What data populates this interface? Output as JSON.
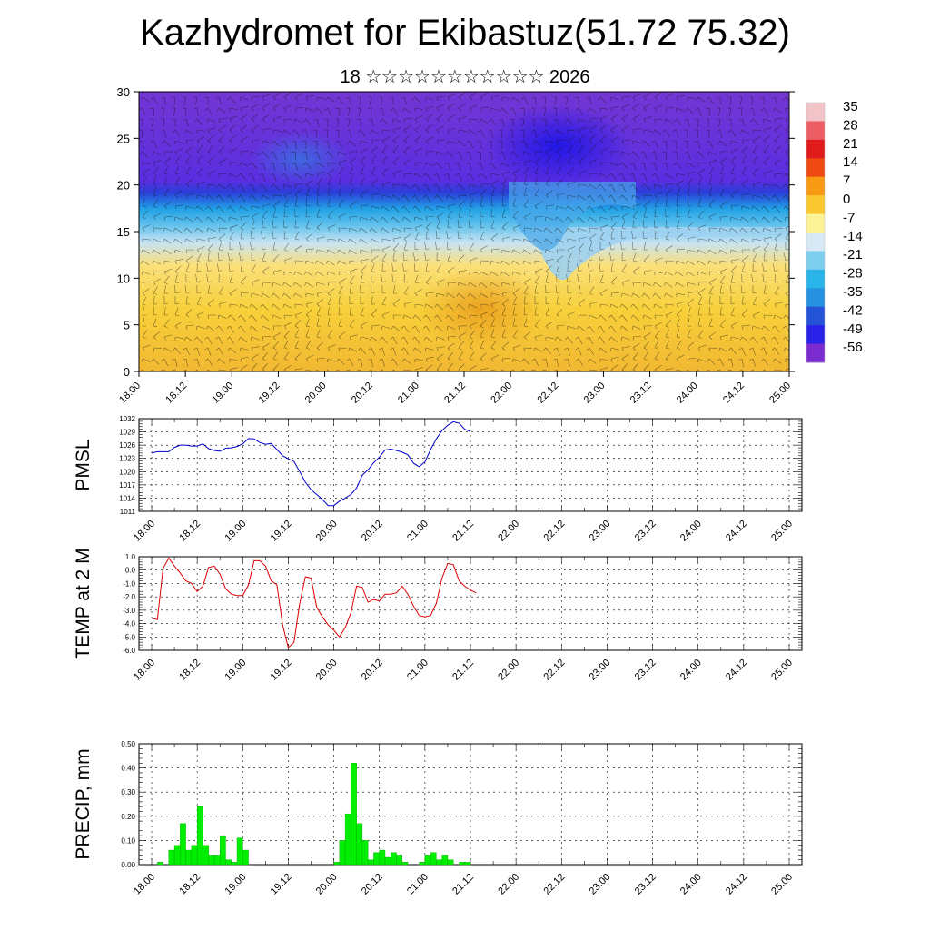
{
  "header": {
    "title": "Kazhydromet for Ekibastuz(51.72 75.32)",
    "subtitle": "18 ☆☆☆☆☆☆☆☆☆☆☆ 2026"
  },
  "colors": {
    "pmsl_line": "#0000cc",
    "temp_line": "#dd0000",
    "precip_bar": "#00ee00",
    "bar_edge": "#00aa00"
  },
  "time_ticks": [
    "18.00",
    "18.12",
    "19.00",
    "19.12",
    "20.00",
    "20.12",
    "21.00",
    "21.12",
    "22.00",
    "22.12",
    "23.00",
    "23.12",
    "24.00",
    "24.12",
    "25.00"
  ],
  "chart_data": [
    {
      "type": "heatmap",
      "name": "cross-section",
      "ylim": [
        0,
        30
      ],
      "yticks": [
        "0",
        "5",
        "10",
        "15",
        "20",
        "25",
        "30"
      ],
      "colorbar_labels": [
        "35",
        "28",
        "21",
        "14",
        "7",
        "0",
        "-7",
        "-14",
        "-21",
        "-28",
        "-35",
        "-42",
        "-49",
        "-56"
      ],
      "colorbar_colors": [
        "#f2c4c8",
        "#ec5e64",
        "#e01b1b",
        "#ee4a12",
        "#f89a14",
        "#fac932",
        "#fcf296",
        "#d6e9f4",
        "#7ecfee",
        "#29b5ea",
        "#2691e0",
        "#2453d8",
        "#2a22e8",
        "#7a2cd0"
      ]
    },
    {
      "type": "line",
      "name": "pmsl",
      "ylabel": "PMSL",
      "ylim": [
        1011,
        1032
      ],
      "yticks": [
        "1011",
        "1014",
        "1017",
        "1020",
        "1023",
        "1026",
        "1029",
        "1032"
      ],
      "start_offset": 0,
      "values": [
        1024.2,
        1024.5,
        1024.5,
        1024.5,
        1025.5,
        1026,
        1026,
        1025.8,
        1025.8,
        1026.3,
        1025.2,
        1024.8,
        1024.6,
        1025.3,
        1025.4,
        1025.7,
        1026.3,
        1027.5,
        1027.4,
        1026.6,
        1026.2,
        1026.4,
        1025,
        1023.6,
        1022.9,
        1022.3,
        1020,
        1017.6,
        1015.9,
        1014.8,
        1013.7,
        1012.3,
        1012.3,
        1013.3,
        1014,
        1014.8,
        1016.3,
        1019.2,
        1020.4,
        1022,
        1023.3,
        1024.9,
        1025.1,
        1024.8,
        1024.4,
        1023.8,
        1021.9,
        1021.1,
        1022.2,
        1025,
        1027.4,
        1029.3,
        1030.5,
        1031.3,
        1031,
        1029.6,
        1029.1
      ]
    },
    {
      "type": "line",
      "name": "temp",
      "ylabel": "TEMP at 2 M",
      "ylim": [
        -6,
        1
      ],
      "yticks": [
        "-6.0",
        "-5.0",
        "-4.0",
        "-3.0",
        "-2.0",
        "-1.0",
        "0.0",
        "1.0"
      ],
      "start_offset": 0,
      "values": [
        -3.6,
        -3.7,
        0.1,
        0.9,
        0.3,
        -0.2,
        -0.8,
        -1,
        -1.6,
        -1.2,
        0.2,
        0.3,
        -0.3,
        -1.4,
        -1.8,
        -1.9,
        -1.9,
        -1.1,
        0.7,
        0.7,
        0.3,
        -0.8,
        -1.1,
        -4.1,
        -5.8,
        -5.4,
        -2.5,
        -0.5,
        -0.6,
        -2.8,
        -3.5,
        -4.1,
        -4.5,
        -5,
        -4.3,
        -3.2,
        -1.2,
        -1.3,
        -2.4,
        -2.2,
        -2.3,
        -1.8,
        -1.8,
        -1.7,
        -1.2,
        -1.8,
        -2.7,
        -3.4,
        -3.5,
        -3.4,
        -2.5,
        -0.6,
        0.5,
        0.4,
        -0.8,
        -1.2,
        -1.5,
        -1.7
      ]
    },
    {
      "type": "bar",
      "name": "precip",
      "ylabel": "PRECIP, mm",
      "ylim": [
        0,
        0.5
      ],
      "yticks": [
        "0.00",
        "0.10",
        "0.20",
        "0.30",
        "0.40",
        "0.50"
      ],
      "start_offset": 0,
      "values": [
        0,
        0.01,
        0,
        0.06,
        0.08,
        0.17,
        0.06,
        0.08,
        0.24,
        0.08,
        0.04,
        0.04,
        0.12,
        0.02,
        0.01,
        0.11,
        0.06,
        0,
        0,
        0,
        0,
        0,
        0,
        0,
        0,
        0,
        0,
        0,
        0,
        0,
        0,
        0,
        0.01,
        0.1,
        0.21,
        0.42,
        0.17,
        0.1,
        0.02,
        0.05,
        0.06,
        0.03,
        0.05,
        0.04,
        0.01,
        0,
        0,
        0.01,
        0.04,
        0.05,
        0.02,
        0.04,
        0.02,
        0,
        0.01,
        0.01
      ]
    }
  ]
}
